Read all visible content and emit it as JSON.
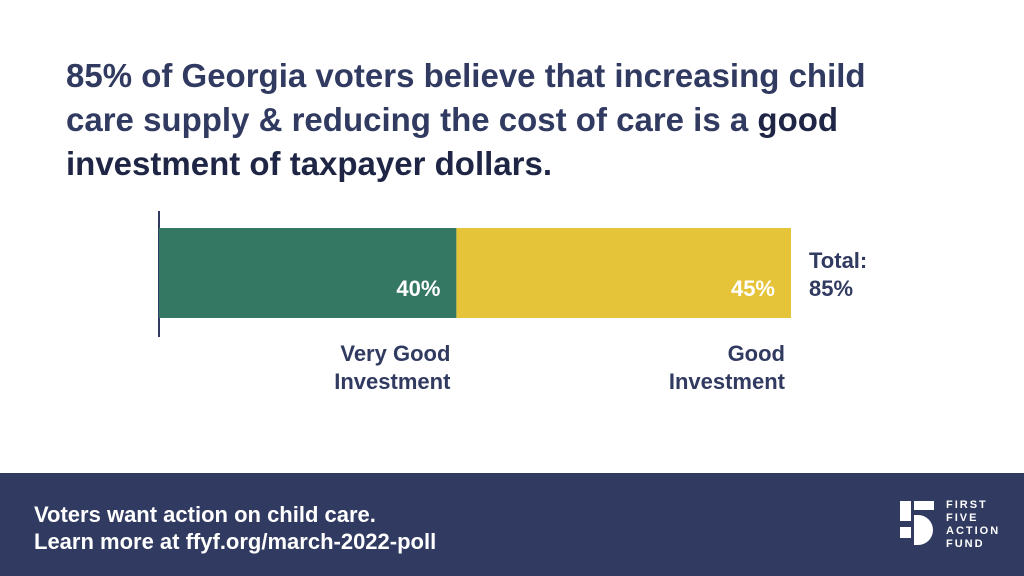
{
  "headline": {
    "text_plain": "85% of Georgia voters believe that increasing child care supply & reducing the cost of care is a",
    "text_bold": "good investment of taxpayer dollars."
  },
  "chart_data": {
    "type": "bar",
    "stacked": true,
    "orientation": "horizontal",
    "unit": "%",
    "series": [
      {
        "name": "Very Good Investment",
        "value": 40,
        "label": "40%",
        "color": "#347763"
      },
      {
        "name": "Good Investment",
        "value": 45,
        "label": "45%",
        "color": "#e5c43a"
      }
    ],
    "category_labels": [
      [
        "Very Good",
        "Investment"
      ],
      [
        "Good",
        "Investment"
      ]
    ],
    "total_label": [
      "Total:",
      "85%"
    ],
    "total": 85,
    "grid": false
  },
  "footer": {
    "line1": "Voters want action on child care.",
    "line2": "Learn more at ffyf.org/march-2022-poll",
    "logo_icon": "first-five-five-icon",
    "logo_lines": [
      "FIRST",
      "FIVE",
      "ACTION",
      "FUND"
    ]
  },
  "colors": {
    "navy": "#313a60",
    "green": "#347763",
    "yellow": "#e5c43a",
    "white": "#ffffff"
  }
}
